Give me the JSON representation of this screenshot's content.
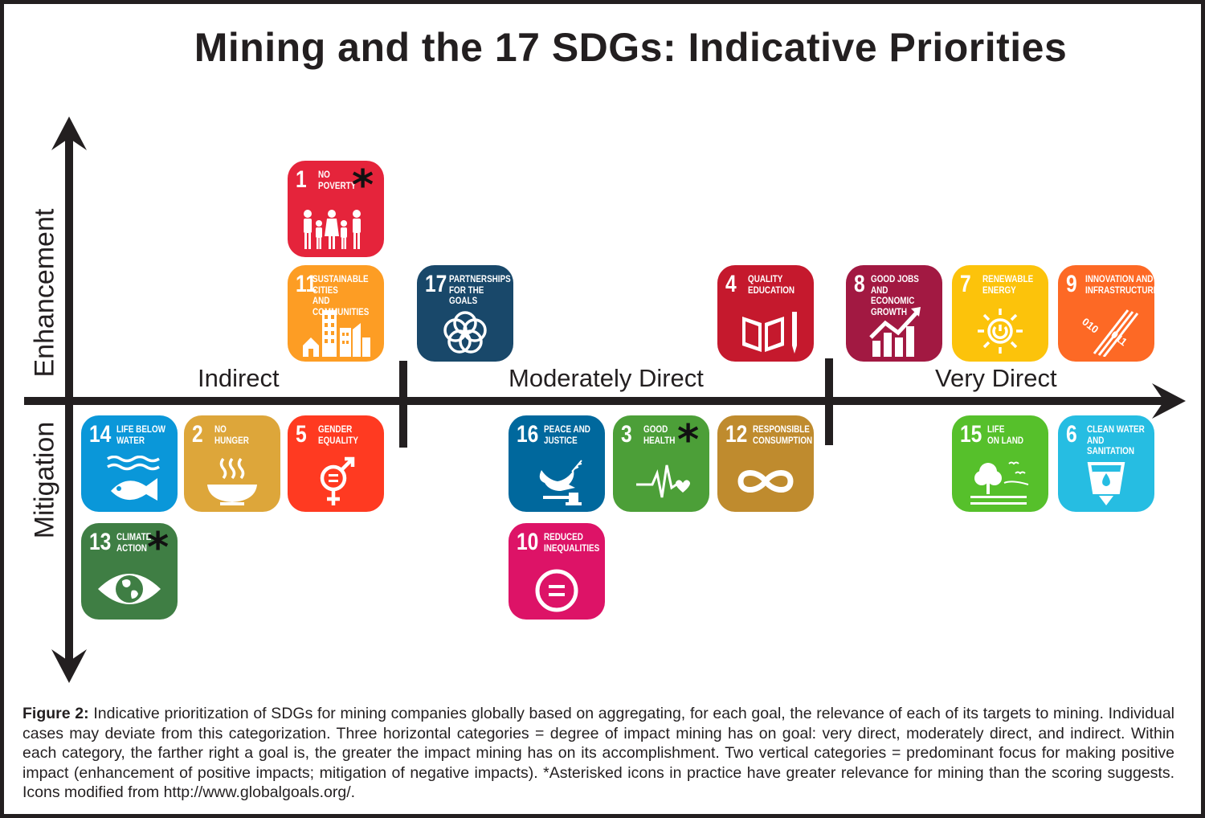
{
  "title": "Mining and the 17 SDGs: Indicative Priorities",
  "axes": {
    "vertical_top": "Enhancement",
    "vertical_bottom": "Mitigation",
    "categories": [
      "Indirect",
      "Moderately Direct",
      "Very Direct"
    ]
  },
  "goals": {
    "g1": {
      "num": "1",
      "label": "No\nPoverty",
      "color": "#e5243b",
      "icon": "family-icon",
      "asterisk": true
    },
    "g11": {
      "num": "11",
      "label": "Sustainable cities\nand communities",
      "color": "#fd9d24",
      "icon": "city-icon",
      "asterisk": false
    },
    "g17": {
      "num": "17",
      "label": "Partnerships\nfor the goals",
      "color": "#19486a",
      "icon": "partnership-rings-icon",
      "asterisk": false
    },
    "g4": {
      "num": "4",
      "label": "Quality\nEducation",
      "color": "#c5192d",
      "icon": "book-icon",
      "asterisk": false
    },
    "g8": {
      "num": "8",
      "label": "Good jobs and\neconomic growth",
      "color": "#a21942",
      "icon": "growth-chart-icon",
      "asterisk": false
    },
    "g7": {
      "num": "7",
      "label": "Renewable\nEnergy",
      "color": "#fcc30b",
      "icon": "sun-power-icon",
      "asterisk": false
    },
    "g9": {
      "num": "9",
      "label": "Innovation and\ninfrastructure",
      "color": "#fd6925",
      "icon": "binary-icon",
      "asterisk": false
    },
    "g14": {
      "num": "14",
      "label": "Life below\nwater",
      "color": "#0a97d9",
      "icon": "fish-icon",
      "asterisk": false
    },
    "g2": {
      "num": "2",
      "label": "No\nHunger",
      "color": "#dda63a",
      "icon": "bowl-icon",
      "asterisk": false
    },
    "g5": {
      "num": "5",
      "label": "Gender\nEquality",
      "color": "#ff3a21",
      "icon": "gender-icon",
      "asterisk": false
    },
    "g13": {
      "num": "13",
      "label": "Climate\nAction",
      "color": "#3f7e44",
      "icon": "eye-globe-icon",
      "asterisk": true
    },
    "g16": {
      "num": "16",
      "label": "Peace and\nJustice",
      "color": "#00689d",
      "icon": "dove-gavel-icon",
      "asterisk": false
    },
    "g3": {
      "num": "3",
      "label": "Good\nHealth",
      "color": "#4c9f38",
      "icon": "heartbeat-icon",
      "asterisk": true
    },
    "g12": {
      "num": "12",
      "label": "Responsible\nconsumption",
      "color": "#bf8b2e",
      "icon": "infinity-icon",
      "asterisk": false
    },
    "g10": {
      "num": "10",
      "label": "Reduced\ninequalities",
      "color": "#dd1367",
      "icon": "equals-icon",
      "asterisk": false
    },
    "g15": {
      "num": "15",
      "label": "Life\non land",
      "color": "#56c02b",
      "icon": "tree-icon",
      "asterisk": false
    },
    "g6": {
      "num": "6",
      "label": "Clean water\nand sanitation",
      "color": "#26bde2",
      "icon": "water-drop-icon",
      "asterisk": false
    }
  },
  "asterisk_symbol": "*",
  "caption": {
    "lead": "Figure 2:",
    "text": " Indicative prioritization of SDGs for mining companies globally based on aggregating, for each goal, the relevance of each of its targets to mining. Individual cases may deviate from this categorization. Three horizontal categories = degree of impact mining has on goal: very direct, moderately direct, and indirect. Within each category, the farther right a goal is, the greater the impact mining has on its accomplishment. Two vertical categories = predominant focus for making positive impact (enhancement of positive impacts; mitigation of negative impacts). *Asterisked icons in practice have greater relevance for mining than the scoring suggests. Icons modified from http://www.globalgoals.org/."
  }
}
